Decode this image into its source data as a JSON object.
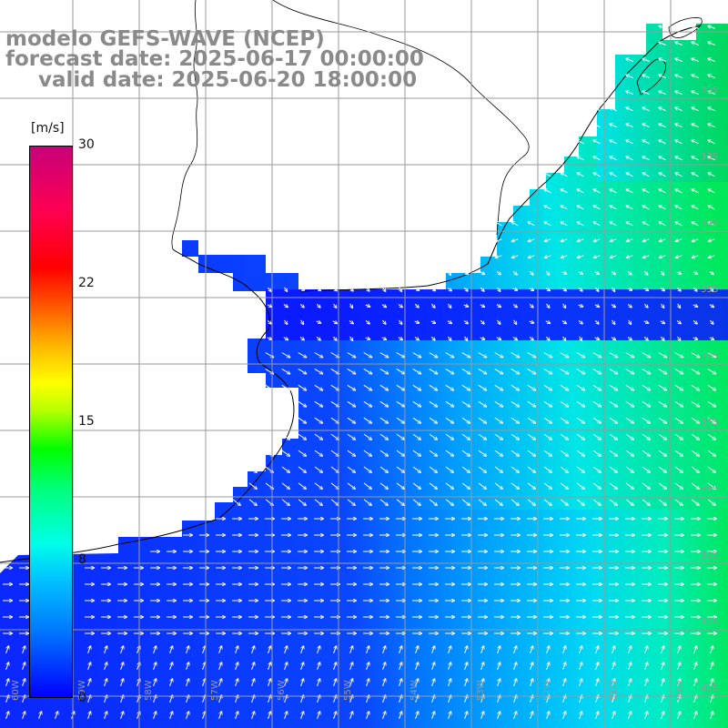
{
  "title": {
    "line1": "modelo GEFS-WAVE (NCEP)",
    "line2": "forecast date: 2025-06-17 00:00:00",
    "line3": "valid date: 2025-06-20 18:00:00"
  },
  "colorbar": {
    "unit": "[m/s]",
    "ticks": [
      "30",
      "22",
      "15",
      "8",
      "0"
    ],
    "min": 0,
    "max": 30
  },
  "grid": {
    "lat_labels": [
      "32S",
      "33S",
      "34S",
      "35S",
      "36S",
      "37S",
      "38S",
      "39S",
      "40S",
      "41S"
    ],
    "lon_labels": [
      "60W",
      "59W",
      "58W",
      "57W",
      "56W",
      "55W",
      "54W",
      "53W",
      "52W",
      "51W",
      "50W"
    ]
  },
  "colors": {
    "land": "#ffffff",
    "coast": "#000000",
    "grid": "#9a9a9a",
    "arrows": "#ffffff",
    "title_text": "#8a8a8a"
  }
}
